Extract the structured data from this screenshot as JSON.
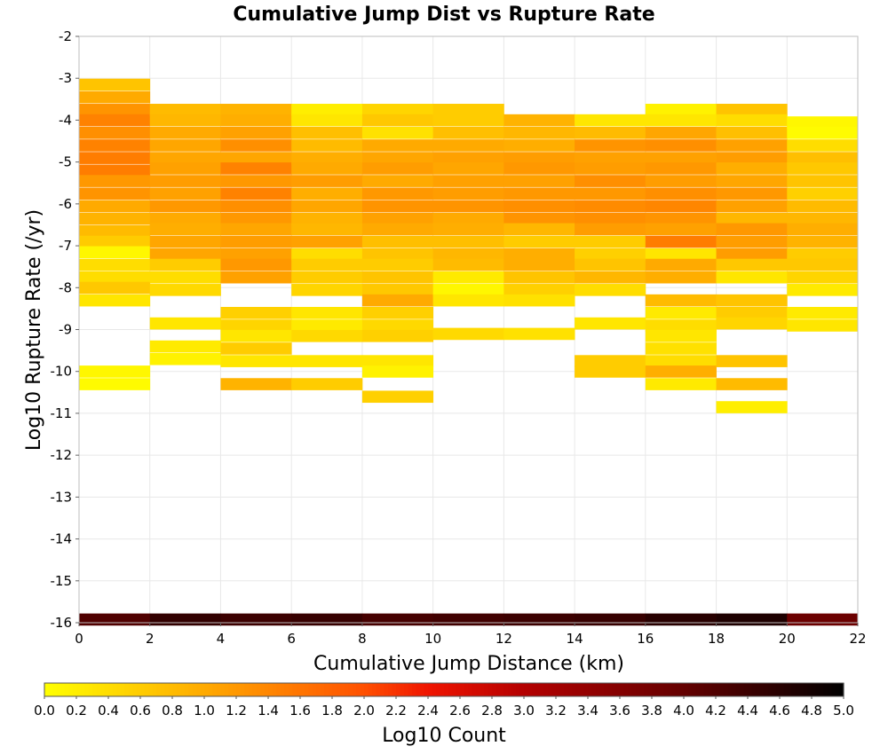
{
  "chart_data": {
    "type": "heatmap",
    "title": "Cumulative Jump Dist vs Rupture Rate",
    "xlabel": "Cumulative Jump Distance (km)",
    "ylabel": "Log10 Rupture Rate (/yr)",
    "xlim": [
      0,
      22
    ],
    "ylim": [
      -16,
      -2
    ],
    "x_ticks": [
      "0",
      "2",
      "4",
      "6",
      "8",
      "10",
      "12",
      "14",
      "16",
      "18",
      "20",
      "22"
    ],
    "y_ticks": [
      "-2",
      "-3",
      "-4",
      "-5",
      "-6",
      "-7",
      "-8",
      "-9",
      "-10",
      "-11",
      "-12",
      "-13",
      "-14",
      "-15",
      "-16"
    ],
    "x_bin_width": 2,
    "y_bin_height": 0.28,
    "colorbar": {
      "label": "Log10 Count",
      "range": [
        0,
        5
      ],
      "ticks": [
        "0.0",
        "0.2",
        "0.4",
        "0.6",
        "0.8",
        "1.0",
        "1.2",
        "1.4",
        "1.6",
        "1.8",
        "2.0",
        "2.2",
        "2.4",
        "2.6",
        "2.8",
        "3.0",
        "3.2",
        "3.4",
        "3.6",
        "3.8",
        "4.0",
        "4.2",
        "4.4",
        "4.6",
        "4.8",
        "5.0"
      ]
    },
    "cells": [
      [
        0,
        -3.15,
        0.7
      ],
      [
        0,
        -3.45,
        1.0
      ],
      [
        0,
        -3.75,
        1.25
      ],
      [
        0,
        -4.0,
        1.45
      ],
      [
        0,
        -4.3,
        1.3
      ],
      [
        0,
        -4.6,
        1.45
      ],
      [
        0,
        -4.9,
        1.5
      ],
      [
        0,
        -5.2,
        1.5
      ],
      [
        0,
        -5.45,
        1.2
      ],
      [
        0,
        -5.75,
        1.25
      ],
      [
        0,
        -6.05,
        1.0
      ],
      [
        0,
        -6.35,
        0.9
      ],
      [
        0,
        -6.65,
        0.8
      ],
      [
        0,
        -6.9,
        0.6
      ],
      [
        0,
        -7.15,
        0.1
      ],
      [
        0,
        -7.45,
        0.4
      ],
      [
        0,
        -7.75,
        0.4
      ],
      [
        0,
        -8.0,
        0.65
      ],
      [
        0,
        -8.3,
        0.3
      ],
      [
        0,
        -10.0,
        0.1
      ],
      [
        0,
        -10.3,
        0.05
      ],
      [
        2,
        -3.75,
        0.8
      ],
      [
        2,
        -4.0,
        0.85
      ],
      [
        2,
        -4.3,
        1.0
      ],
      [
        2,
        -4.6,
        1.05
      ],
      [
        2,
        -4.9,
        1.05
      ],
      [
        2,
        -5.15,
        1.1
      ],
      [
        2,
        -5.45,
        1.15
      ],
      [
        2,
        -5.75,
        1.1
      ],
      [
        2,
        -6.05,
        1.2
      ],
      [
        2,
        -6.35,
        1.0
      ],
      [
        2,
        -6.6,
        0.95
      ],
      [
        2,
        -6.9,
        1.05
      ],
      [
        2,
        -7.2,
        1.05
      ],
      [
        2,
        -7.45,
        0.6
      ],
      [
        2,
        -7.75,
        0.4
      ],
      [
        2,
        -8.05,
        0.45
      ],
      [
        2,
        -8.85,
        0.3
      ],
      [
        2,
        -9.4,
        0.25
      ],
      [
        2,
        -9.7,
        0.15
      ],
      [
        4,
        -3.75,
        0.9
      ],
      [
        4,
        -4.0,
        0.95
      ],
      [
        4,
        -4.3,
        1.1
      ],
      [
        4,
        -4.6,
        1.3
      ],
      [
        4,
        -4.9,
        1.05
      ],
      [
        4,
        -5.15,
        1.45
      ],
      [
        4,
        -5.45,
        1.2
      ],
      [
        4,
        -5.75,
        1.45
      ],
      [
        4,
        -6.05,
        1.3
      ],
      [
        4,
        -6.35,
        1.2
      ],
      [
        4,
        -6.6,
        1.05
      ],
      [
        4,
        -6.9,
        1.15
      ],
      [
        4,
        -7.2,
        1.1
      ],
      [
        4,
        -7.45,
        1.2
      ],
      [
        4,
        -7.75,
        1.1
      ],
      [
        4,
        -8.6,
        0.55
      ],
      [
        4,
        -8.9,
        0.5
      ],
      [
        4,
        -9.15,
        0.3
      ],
      [
        4,
        -9.45,
        0.6
      ],
      [
        4,
        -9.75,
        0.3
      ],
      [
        4,
        -10.3,
        0.9
      ],
      [
        6,
        -3.75,
        0.2
      ],
      [
        6,
        -4.0,
        0.3
      ],
      [
        6,
        -4.3,
        0.75
      ],
      [
        6,
        -4.6,
        0.8
      ],
      [
        6,
        -4.9,
        0.95
      ],
      [
        6,
        -5.15,
        1.0
      ],
      [
        6,
        -5.45,
        1.15
      ],
      [
        6,
        -5.75,
        0.95
      ],
      [
        6,
        -6.05,
        1.05
      ],
      [
        6,
        -6.35,
        0.9
      ],
      [
        6,
        -6.6,
        0.85
      ],
      [
        6,
        -6.9,
        1.1
      ],
      [
        6,
        -7.2,
        0.4
      ],
      [
        6,
        -7.45,
        0.6
      ],
      [
        6,
        -7.75,
        0.6
      ],
      [
        6,
        -8.05,
        0.5
      ],
      [
        6,
        -8.6,
        0.3
      ],
      [
        6,
        -8.9,
        0.25
      ],
      [
        6,
        -9.15,
        0.45
      ],
      [
        6,
        -9.75,
        0.3
      ],
      [
        6,
        -10.3,
        0.6
      ],
      [
        8,
        -3.75,
        0.5
      ],
      [
        8,
        -4.0,
        0.65
      ],
      [
        8,
        -4.3,
        0.35
      ],
      [
        8,
        -4.6,
        1.0
      ],
      [
        8,
        -4.9,
        1.05
      ],
      [
        8,
        -5.15,
        1.15
      ],
      [
        8,
        -5.45,
        1.0
      ],
      [
        8,
        -5.75,
        1.2
      ],
      [
        8,
        -6.05,
        1.25
      ],
      [
        8,
        -6.35,
        1.1
      ],
      [
        8,
        -6.6,
        1.0
      ],
      [
        8,
        -6.9,
        0.75
      ],
      [
        8,
        -7.2,
        0.7
      ],
      [
        8,
        -7.45,
        0.6
      ],
      [
        8,
        -7.75,
        0.7
      ],
      [
        8,
        -8.05,
        0.65
      ],
      [
        8,
        -8.3,
        1.0
      ],
      [
        8,
        -8.6,
        0.55
      ],
      [
        8,
        -8.9,
        0.45
      ],
      [
        8,
        -9.15,
        0.55
      ],
      [
        8,
        -9.75,
        0.3
      ],
      [
        8,
        -10.0,
        0.15
      ],
      [
        8,
        -10.6,
        0.55
      ],
      [
        10,
        -3.75,
        0.6
      ],
      [
        10,
        -4.0,
        0.6
      ],
      [
        10,
        -4.3,
        0.75
      ],
      [
        10,
        -4.6,
        1.0
      ],
      [
        10,
        -4.9,
        1.1
      ],
      [
        10,
        -5.15,
        1.05
      ],
      [
        10,
        -5.45,
        1.1
      ],
      [
        10,
        -5.75,
        1.15
      ],
      [
        10,
        -6.05,
        1.25
      ],
      [
        10,
        -6.35,
        1.0
      ],
      [
        10,
        -6.6,
        0.95
      ],
      [
        10,
        -6.9,
        0.75
      ],
      [
        10,
        -7.2,
        0.85
      ],
      [
        10,
        -7.45,
        0.8
      ],
      [
        10,
        -7.75,
        0.25
      ],
      [
        10,
        -8.05,
        0.1
      ],
      [
        10,
        -8.3,
        0.3
      ],
      [
        10,
        -9.1,
        0.45
      ],
      [
        12,
        -4.0,
        0.9
      ],
      [
        12,
        -4.3,
        0.85
      ],
      [
        12,
        -4.6,
        0.95
      ],
      [
        12,
        -4.9,
        1.15
      ],
      [
        12,
        -5.15,
        1.2
      ],
      [
        12,
        -5.45,
        1.1
      ],
      [
        12,
        -5.75,
        1.2
      ],
      [
        12,
        -6.05,
        1.3
      ],
      [
        12,
        -6.35,
        1.25
      ],
      [
        12,
        -6.6,
        0.85
      ],
      [
        12,
        -6.9,
        0.6
      ],
      [
        12,
        -7.2,
        0.95
      ],
      [
        12,
        -7.45,
        0.95
      ],
      [
        12,
        -7.75,
        0.7
      ],
      [
        12,
        -8.05,
        0.55
      ],
      [
        12,
        -8.3,
        0.35
      ],
      [
        12,
        -9.1,
        0.35
      ],
      [
        14,
        -4.0,
        0.3
      ],
      [
        14,
        -4.3,
        0.8
      ],
      [
        14,
        -4.6,
        1.25
      ],
      [
        14,
        -4.9,
        1.1
      ],
      [
        14,
        -5.15,
        1.15
      ],
      [
        14,
        -5.45,
        1.3
      ],
      [
        14,
        -5.75,
        1.2
      ],
      [
        14,
        -6.05,
        1.35
      ],
      [
        14,
        -6.35,
        1.3
      ],
      [
        14,
        -6.6,
        1.15
      ],
      [
        14,
        -6.9,
        0.6
      ],
      [
        14,
        -7.2,
        0.55
      ],
      [
        14,
        -7.45,
        0.7
      ],
      [
        14,
        -7.75,
        0.85
      ],
      [
        14,
        -8.05,
        0.4
      ],
      [
        14,
        -8.85,
        0.3
      ],
      [
        14,
        -9.75,
        0.6
      ],
      [
        14,
        -10.0,
        0.6
      ],
      [
        16,
        -3.75,
        0.15
      ],
      [
        16,
        -4.0,
        0.3
      ],
      [
        16,
        -4.3,
        1.05
      ],
      [
        16,
        -4.6,
        1.3
      ],
      [
        16,
        -4.9,
        1.1
      ],
      [
        16,
        -5.15,
        1.2
      ],
      [
        16,
        -5.45,
        1.15
      ],
      [
        16,
        -5.75,
        1.3
      ],
      [
        16,
        -6.05,
        1.4
      ],
      [
        16,
        -6.35,
        1.25
      ],
      [
        16,
        -6.6,
        1.1
      ],
      [
        16,
        -6.9,
        1.5
      ],
      [
        16,
        -7.2,
        0.3
      ],
      [
        16,
        -7.45,
        1.0
      ],
      [
        16,
        -7.75,
        0.95
      ],
      [
        16,
        -8.3,
        0.8
      ],
      [
        16,
        -8.6,
        0.25
      ],
      [
        16,
        -8.9,
        0.4
      ],
      [
        16,
        -9.15,
        0.3
      ],
      [
        16,
        -9.45,
        0.35
      ],
      [
        16,
        -9.75,
        0.4
      ],
      [
        16,
        -10.0,
        0.95
      ],
      [
        16,
        -10.3,
        0.25
      ],
      [
        18,
        -3.75,
        0.7
      ],
      [
        18,
        -4.0,
        0.4
      ],
      [
        18,
        -4.3,
        0.75
      ],
      [
        18,
        -4.6,
        1.1
      ],
      [
        18,
        -4.9,
        1.15
      ],
      [
        18,
        -5.15,
        0.95
      ],
      [
        18,
        -5.45,
        1.05
      ],
      [
        18,
        -5.75,
        1.2
      ],
      [
        18,
        -6.05,
        1.1
      ],
      [
        18,
        -6.35,
        0.85
      ],
      [
        18,
        -6.6,
        1.2
      ],
      [
        18,
        -6.9,
        1.15
      ],
      [
        18,
        -7.2,
        1.15
      ],
      [
        18,
        -7.45,
        0.65
      ],
      [
        18,
        -7.75,
        0.3
      ],
      [
        18,
        -8.3,
        0.7
      ],
      [
        18,
        -8.6,
        0.6
      ],
      [
        18,
        -8.85,
        0.5
      ],
      [
        18,
        -9.75,
        0.7
      ],
      [
        18,
        -10.3,
        0.8
      ],
      [
        18,
        -10.85,
        0.2
      ],
      [
        20,
        -4.05,
        0.1
      ],
      [
        20,
        -4.3,
        0.05
      ],
      [
        20,
        -4.6,
        0.4
      ],
      [
        20,
        -4.9,
        0.75
      ],
      [
        20,
        -5.15,
        0.65
      ],
      [
        20,
        -5.45,
        0.7
      ],
      [
        20,
        -5.75,
        0.55
      ],
      [
        20,
        -6.05,
        0.8
      ],
      [
        20,
        -6.35,
        0.85
      ],
      [
        20,
        -6.6,
        0.95
      ],
      [
        20,
        -6.9,
        0.9
      ],
      [
        20,
        -7.2,
        0.6
      ],
      [
        20,
        -7.45,
        0.65
      ],
      [
        20,
        -7.75,
        0.5
      ],
      [
        20,
        -8.05,
        0.25
      ],
      [
        20,
        -8.6,
        0.25
      ],
      [
        20,
        -8.9,
        0.3
      ],
      [
        0,
        -15.92,
        4.2
      ],
      [
        2,
        -15.92,
        4.5
      ],
      [
        4,
        -15.92,
        4.4
      ],
      [
        6,
        -15.92,
        4.45
      ],
      [
        8,
        -15.92,
        4.3
      ],
      [
        10,
        -15.92,
        4.35
      ],
      [
        12,
        -15.92,
        4.4
      ],
      [
        14,
        -15.92,
        4.45
      ],
      [
        16,
        -15.92,
        4.6
      ],
      [
        18,
        -15.92,
        4.7
      ],
      [
        20,
        -15.92,
        3.9
      ]
    ]
  }
}
